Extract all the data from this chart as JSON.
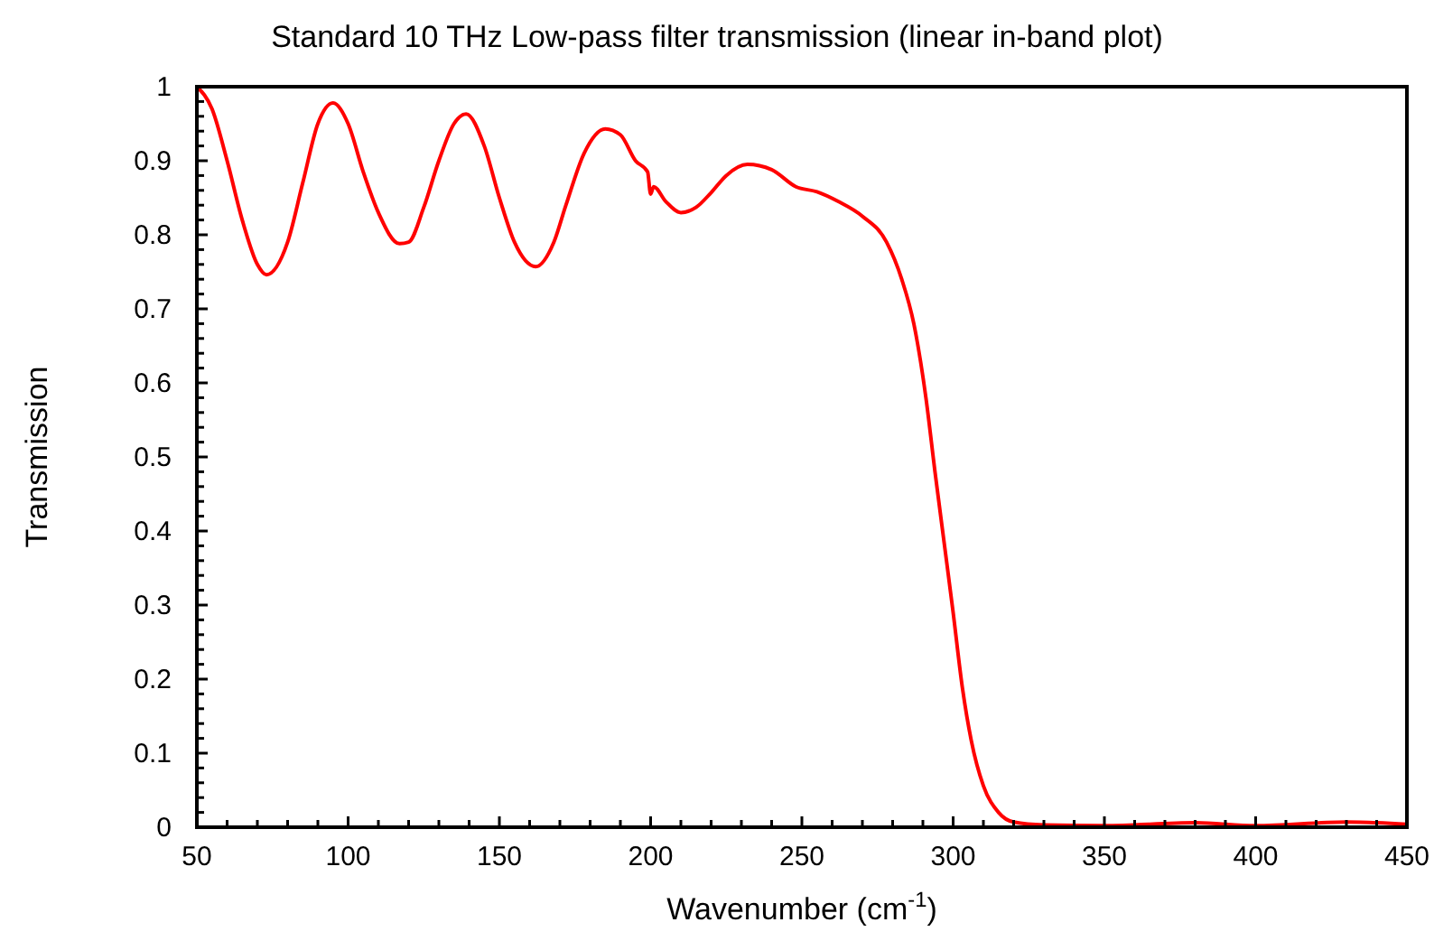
{
  "chart_data": {
    "type": "line",
    "title": "Standard 10 THz Low-pass filter transmission (linear in-band plot)",
    "xlabel": "Wavenumber  (cm$^{-1}$)",
    "ylabel": "Transmission",
    "xlim": [
      50,
      450
    ],
    "ylim": [
      0,
      1
    ],
    "xticks": [
      50,
      {
        "value": 60,
        "label": null
      },
      {
        "value": 70,
        "label": null
      },
      {
        "value": 80,
        "label": null
      },
      {
        "value": 90,
        "label": null
      },
      100,
      {
        "value": 110,
        "label": null
      },
      {
        "value": 120,
        "label": null
      },
      {
        "value": 130,
        "label": null
      },
      {
        "value": 140,
        "label": null
      },
      150,
      {
        "value": 160,
        "label": null
      },
      {
        "value": 170,
        "label": null
      },
      {
        "value": 180,
        "label": null
      },
      {
        "value": 190,
        "label": null
      },
      200,
      {
        "value": 210,
        "label": null
      },
      {
        "value": 220,
        "label": null
      },
      {
        "value": 230,
        "label": null
      },
      {
        "value": 240,
        "label": null
      },
      250,
      {
        "value": 260,
        "label": null
      },
      {
        "value": 270,
        "label": null
      },
      {
        "value": 280,
        "label": null
      },
      {
        "value": 290,
        "label": null
      },
      300,
      {
        "value": 310,
        "label": null
      },
      {
        "value": 320,
        "label": null
      },
      {
        "value": 330,
        "label": null
      },
      {
        "value": 340,
        "label": null
      },
      350,
      {
        "value": 360,
        "label": null
      },
      {
        "value": 370,
        "label": null
      },
      {
        "value": 380,
        "label": null
      },
      {
        "value": 390,
        "label": null
      },
      400,
      {
        "value": 410,
        "label": null
      },
      {
        "value": 420,
        "label": null
      },
      {
        "value": 430,
        "label": null
      },
      {
        "value": 440,
        "label": null
      },
      450
    ],
    "yticks": [
      0,
      {
        "value": 0.02,
        "label": null
      },
      {
        "value": 0.04,
        "label": null
      },
      {
        "value": 0.06,
        "label": null
      },
      {
        "value": 0.08,
        "label": null
      },
      0.1,
      {
        "value": 0.12,
        "label": null
      },
      {
        "value": 0.14,
        "label": null
      },
      {
        "value": 0.16,
        "label": null
      },
      {
        "value": 0.18,
        "label": null
      },
      0.2,
      {
        "value": 0.22,
        "label": null
      },
      {
        "value": 0.24,
        "label": null
      },
      {
        "value": 0.26,
        "label": null
      },
      {
        "value": 0.28,
        "label": null
      },
      0.3,
      {
        "value": 0.32,
        "label": null
      },
      {
        "value": 0.34,
        "label": null
      },
      {
        "value": 0.36,
        "label": null
      },
      {
        "value": 0.38,
        "label": null
      },
      0.4,
      {
        "value": 0.42,
        "label": null
      },
      {
        "value": 0.44,
        "label": null
      },
      {
        "value": 0.46,
        "label": null
      },
      {
        "value": 0.48,
        "label": null
      },
      0.5,
      {
        "value": 0.52,
        "label": null
      },
      {
        "value": 0.54,
        "label": null
      },
      {
        "value": 0.56,
        "label": null
      },
      {
        "value": 0.58,
        "label": null
      },
      0.6,
      {
        "value": 0.62,
        "label": null
      },
      {
        "value": 0.64,
        "label": null
      },
      {
        "value": 0.66,
        "label": null
      },
      {
        "value": 0.68,
        "label": null
      },
      0.7,
      {
        "value": 0.72,
        "label": null
      },
      {
        "value": 0.74,
        "label": null
      },
      {
        "value": 0.76,
        "label": null
      },
      {
        "value": 0.78,
        "label": null
      },
      0.8,
      {
        "value": 0.82,
        "label": null
      },
      {
        "value": 0.84,
        "label": null
      },
      {
        "value": 0.86,
        "label": null
      },
      {
        "value": 0.88,
        "label": null
      },
      0.9,
      {
        "value": 0.92,
        "label": null
      },
      {
        "value": 0.94,
        "label": null
      },
      {
        "value": 0.96,
        "label": null
      },
      {
        "value": 0.98,
        "label": null
      },
      1
    ],
    "grid": false,
    "marker": "none",
    "line_style": "solid",
    "series": [
      {
        "color": "#ff0000",
        "x": [
          50,
          55,
          60,
          65,
          70,
          73,
          80,
          85,
          90,
          95,
          100,
          105,
          110,
          117,
          120,
          125,
          130,
          135,
          139,
          145,
          150,
          155,
          162,
          168,
          172,
          178,
          185,
          190,
          195,
          199,
          200,
          201,
          205,
          210,
          215,
          220,
          225,
          232,
          240,
          248,
          255,
          262,
          270,
          278,
          283,
          287,
          291,
          294,
          297,
          300,
          303,
          306,
          310,
          315,
          320,
          330,
          350,
          380,
          400,
          430,
          450
        ],
        "values": [
          1.0,
          0.97,
          0.9,
          0.82,
          0.76,
          0.746,
          0.79,
          0.87,
          0.95,
          0.978,
          0.95,
          0.885,
          0.83,
          0.788,
          0.79,
          0.837,
          0.9,
          0.95,
          0.963,
          0.92,
          0.85,
          0.79,
          0.757,
          0.79,
          0.84,
          0.91,
          0.943,
          0.935,
          0.9,
          0.885,
          0.855,
          0.865,
          0.845,
          0.83,
          0.837,
          0.857,
          0.88,
          0.895,
          0.888,
          0.865,
          0.858,
          0.845,
          0.825,
          0.79,
          0.74,
          0.68,
          0.58,
          0.48,
          0.385,
          0.29,
          0.19,
          0.117,
          0.056,
          0.02,
          0.007,
          0.003,
          0.002,
          0.006,
          0.002,
          0.007,
          0.004
        ]
      }
    ]
  }
}
